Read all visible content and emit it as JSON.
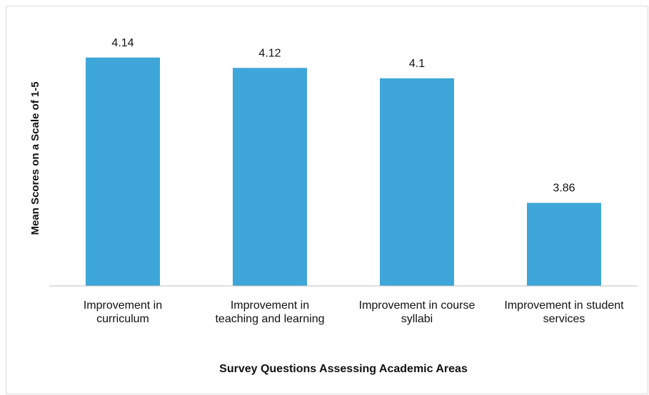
{
  "chart_data": {
    "type": "bar",
    "categories": [
      "Improvement in curriculum",
      "Improvement in teaching and learning",
      "Improvement in course syllabi",
      "Improvement in student services"
    ],
    "values": [
      4.14,
      4.12,
      4.1,
      3.86
    ],
    "color": "#3ea6d8",
    "ylim": [
      3.7,
      4.2
    ],
    "xlabel": "Survey Questions Assessing Academic Areas",
    "ylabel": "Mean Scores on a Scale of 1-5"
  }
}
